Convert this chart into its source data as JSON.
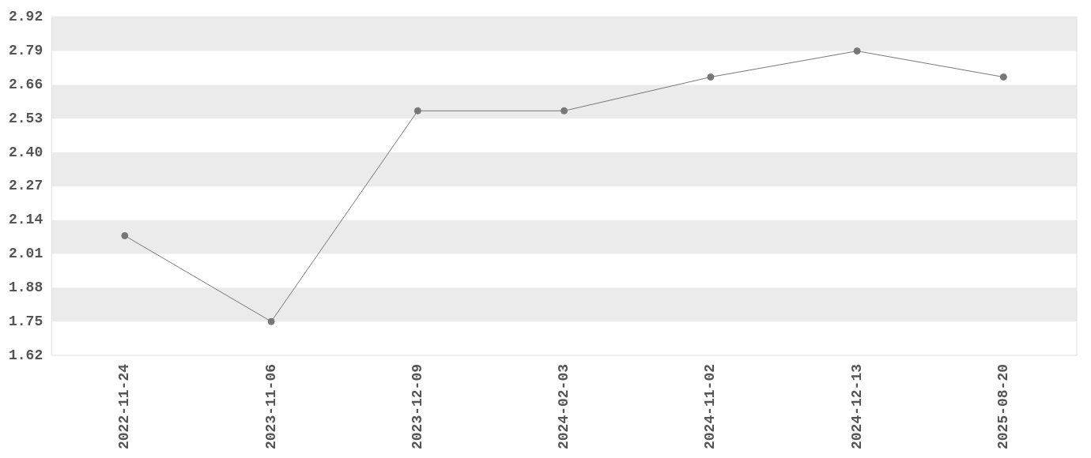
{
  "chart_data": {
    "type": "line",
    "categories": [
      "2022-11-24",
      "2023-11-06",
      "2023-12-09",
      "2024-02-03",
      "2024-11-02",
      "2024-12-13",
      "2025-08-20"
    ],
    "series": [
      {
        "color": "#777777",
        "values": [
          2.08,
          1.75,
          2.56,
          2.56,
          2.69,
          2.79,
          2.69
        ]
      }
    ],
    "ylim": [
      1.62,
      2.92
    ],
    "yticks": [
      1.62,
      1.75,
      1.88,
      2.01,
      2.14,
      2.27,
      {
        "value": 2.4,
        "label": "2.40"
      },
      2.53,
      2.66,
      2.79,
      2.92
    ],
    "bands": [
      {
        "axis": "y",
        "from": 2.79,
        "to": 2.92,
        "color": "#ebebeb"
      },
      {
        "axis": "y",
        "from": 2.53,
        "to": 2.66,
        "color": "#ebebeb"
      },
      {
        "axis": "y",
        "from": 2.27,
        "to": 2.4,
        "color": "#ebebeb"
      },
      {
        "axis": "y",
        "from": 2.01,
        "to": 2.14,
        "color": "#ebebeb"
      },
      {
        "axis": "y",
        "from": 1.75,
        "to": 1.88,
        "color": "#ebebeb"
      }
    ],
    "legend": false,
    "marker": "circle",
    "line_style": "solid"
  }
}
